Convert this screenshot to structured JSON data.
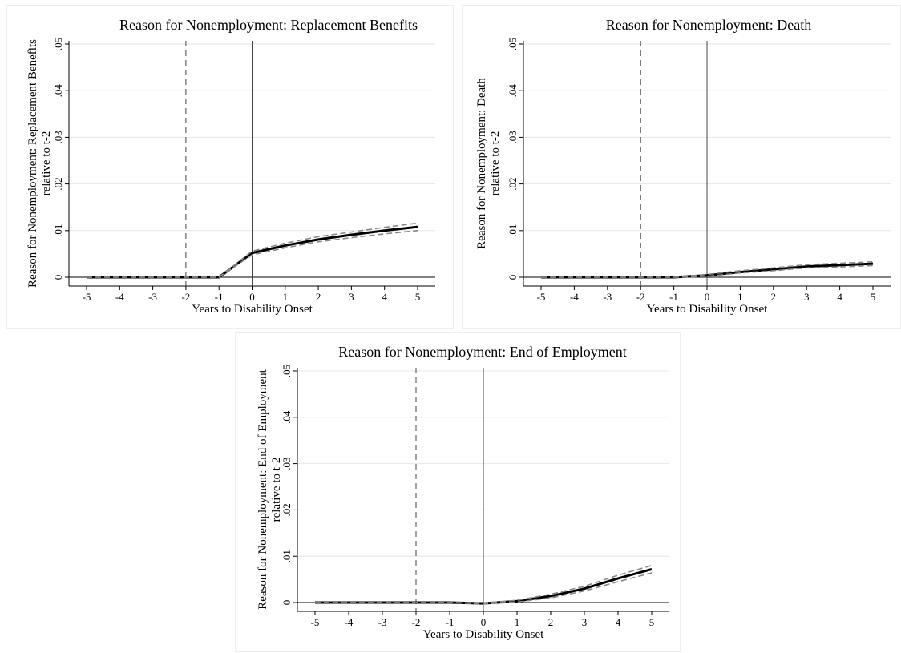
{
  "chart_data": [
    {
      "type": "line",
      "title": "Reason for Nonemployment: Replacement Benefits",
      "xlabel": "Years to Disability Onset",
      "ylabel_lines": [
        "Reason for Nonemployment: Replacement Benefits",
        "relative to t-2"
      ],
      "x": [
        -5,
        -4,
        -3,
        -2,
        -1,
        0,
        1,
        2,
        3,
        4,
        5
      ],
      "xlim": [
        -5,
        5
      ],
      "ylim": [
        0,
        0.05
      ],
      "x_ticks": [
        "-5",
        "-4",
        "-3",
        "-2",
        "-1",
        "0",
        "1",
        "2",
        "3",
        "4",
        "5"
      ],
      "y_ticks": [
        {
          "value": 0,
          "label": "0"
        },
        {
          "value": 0.01,
          "label": ".01"
        },
        {
          "value": 0.02,
          "label": ".02"
        },
        {
          "value": 0.03,
          "label": ".03"
        },
        {
          "value": 0.04,
          "label": ".04"
        },
        {
          "value": 0.05,
          "label": ".05"
        }
      ],
      "grid": true,
      "reference_lines": [
        {
          "x": -2,
          "style": "dashed"
        },
        {
          "x": 0,
          "style": "solid"
        }
      ],
      "series": [
        {
          "role": "estimate",
          "style": "solid",
          "values": [
            0,
            0,
            0,
            0,
            0,
            0.0052,
            0.0068,
            0.0081,
            0.0091,
            0.01,
            0.0108
          ]
        },
        {
          "role": "ci_upper",
          "style": "dashed",
          "values": [
            0,
            0,
            0,
            0,
            0,
            0.0056,
            0.0073,
            0.0087,
            0.0097,
            0.0107,
            0.0116
          ]
        },
        {
          "role": "ci_lower",
          "style": "dashed",
          "values": [
            0,
            0,
            0,
            0,
            0,
            0.0048,
            0.0063,
            0.0076,
            0.0085,
            0.0093,
            0.01
          ]
        }
      ],
      "colors": {
        "estimate": "#000000",
        "ci": "#888888",
        "grid": "#e6e6e6"
      }
    },
    {
      "type": "line",
      "title": "Reason for Nonemployment: Death",
      "xlabel": "Years to Disability Onset",
      "ylabel_lines": [
        "Reason for Nonemployment: Death",
        "relative to t-2"
      ],
      "x": [
        -5,
        -4,
        -3,
        -2,
        -1,
        0,
        1,
        2,
        3,
        4,
        5
      ],
      "xlim": [
        -5,
        5
      ],
      "ylim": [
        0,
        0.05
      ],
      "x_ticks": [
        "-5",
        "-4",
        "-3",
        "-2",
        "-1",
        "0",
        "1",
        "2",
        "3",
        "4",
        "5"
      ],
      "y_ticks": [
        {
          "value": 0,
          "label": "0"
        },
        {
          "value": 0.01,
          "label": ".01"
        },
        {
          "value": 0.02,
          "label": ".02"
        },
        {
          "value": 0.03,
          "label": ".03"
        },
        {
          "value": 0.04,
          "label": ".04"
        },
        {
          "value": 0.05,
          "label": ".05"
        }
      ],
      "grid": true,
      "reference_lines": [
        {
          "x": -2,
          "style": "dashed"
        },
        {
          "x": 0,
          "style": "solid"
        }
      ],
      "series": [
        {
          "role": "estimate",
          "style": "solid",
          "values": [
            0,
            0,
            0,
            0,
            0,
            0.0004,
            0.0011,
            0.0017,
            0.0023,
            0.0026,
            0.0029
          ]
        },
        {
          "role": "ci_upper",
          "style": "dashed",
          "values": [
            0,
            0,
            0,
            0,
            0,
            0.0006,
            0.0014,
            0.002,
            0.0027,
            0.003,
            0.0033
          ]
        },
        {
          "role": "ci_lower",
          "style": "dashed",
          "values": [
            0,
            0,
            0,
            0,
            0,
            0.0002,
            0.0009,
            0.0014,
            0.002,
            0.0022,
            0.0025
          ]
        }
      ],
      "colors": {
        "estimate": "#000000",
        "ci": "#888888",
        "grid": "#e6e6e6"
      }
    },
    {
      "type": "line",
      "title": "Reason for Nonemployment: End of Employment",
      "xlabel": "Years to Disability Onset",
      "ylabel_lines": [
        "Reason for Nonemployment: End of Employment",
        "relative to t-2"
      ],
      "x": [
        -5,
        -4,
        -3,
        -2,
        -1,
        0,
        1,
        2,
        3,
        4,
        5
      ],
      "xlim": [
        -5,
        5
      ],
      "ylim": [
        0,
        0.05
      ],
      "x_ticks": [
        "-5",
        "-4",
        "-3",
        "-2",
        "-1",
        "0",
        "1",
        "2",
        "3",
        "4",
        "5"
      ],
      "y_ticks": [
        {
          "value": 0,
          "label": "0"
        },
        {
          "value": 0.01,
          "label": ".01"
        },
        {
          "value": 0.02,
          "label": ".02"
        },
        {
          "value": 0.03,
          "label": ".03"
        },
        {
          "value": 0.04,
          "label": ".04"
        },
        {
          "value": 0.05,
          "label": ".05"
        }
      ],
      "grid": true,
      "reference_lines": [
        {
          "x": -2,
          "style": "dashed"
        },
        {
          "x": 0,
          "style": "solid"
        }
      ],
      "series": [
        {
          "role": "estimate",
          "style": "solid",
          "values": [
            0,
            0,
            0,
            0,
            0,
            -0.0002,
            0.0003,
            0.0014,
            0.003,
            0.0052,
            0.0072
          ]
        },
        {
          "role": "ci_upper",
          "style": "dashed",
          "values": [
            0,
            0,
            0,
            0,
            0,
            -0.0001,
            0.0005,
            0.0018,
            0.0035,
            0.0059,
            0.008
          ]
        },
        {
          "role": "ci_lower",
          "style": "dashed",
          "values": [
            0,
            0,
            0,
            0,
            0,
            -0.0003,
            0.0001,
            0.001,
            0.0025,
            0.0045,
            0.0064
          ]
        }
      ],
      "colors": {
        "estimate": "#000000",
        "ci": "#888888",
        "grid": "#e6e6e6"
      }
    }
  ]
}
